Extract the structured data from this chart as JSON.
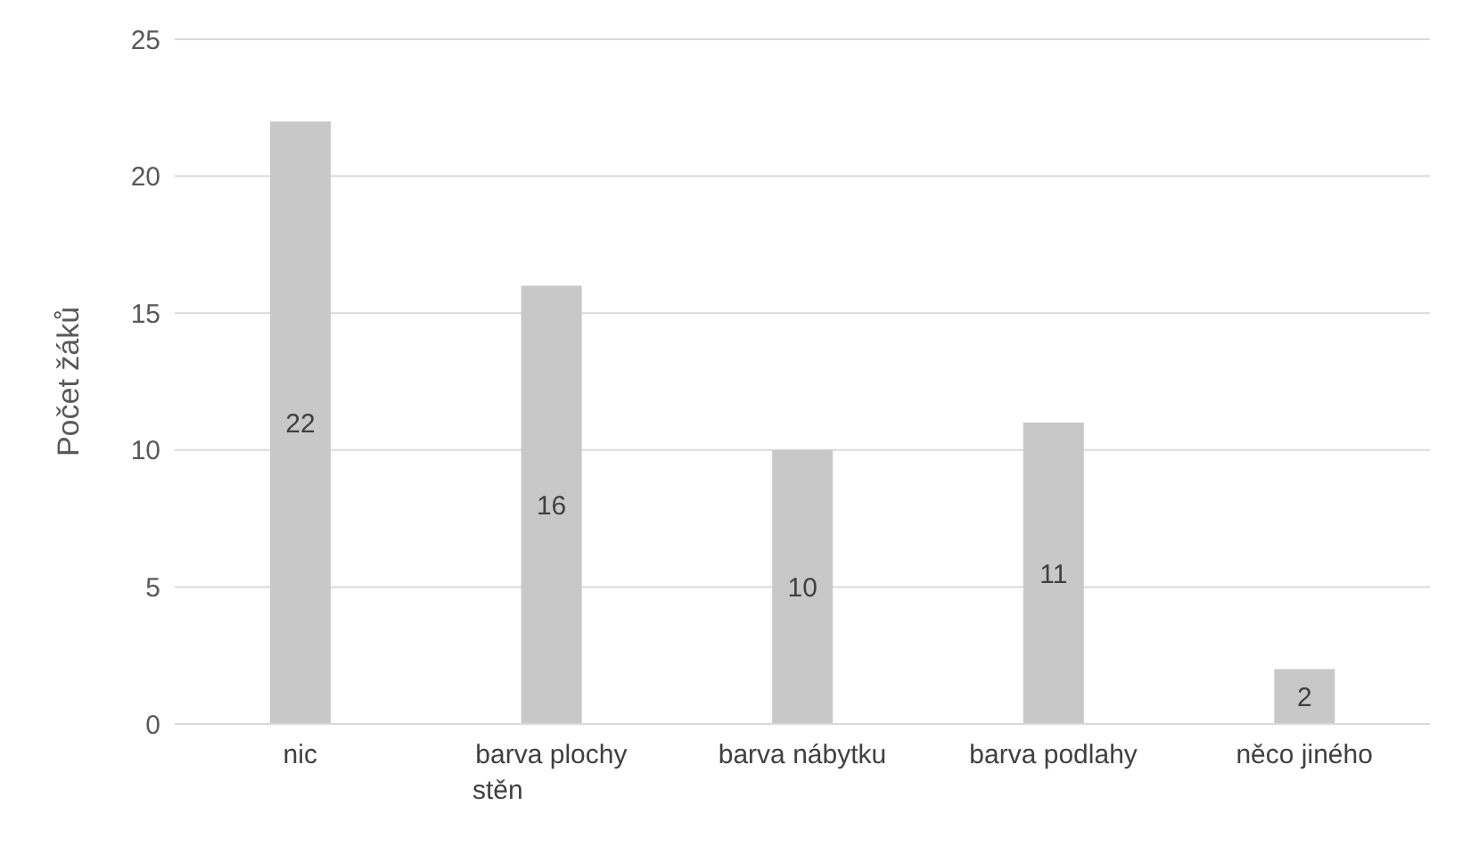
{
  "chart_data": {
    "type": "bar",
    "ylabel": "Počet žáků",
    "categories": [
      "nic",
      "barva plochy stěn",
      "barva nábytku",
      "barva podlahy",
      "něco jiného"
    ],
    "values": [
      22,
      16,
      10,
      11,
      2
    ],
    "color": "#c8c8c8",
    "ylim": [
      0,
      25
    ],
    "yticks": [
      0,
      5,
      10,
      15,
      20,
      25
    ],
    "grid": "y",
    "data_labels": true
  }
}
